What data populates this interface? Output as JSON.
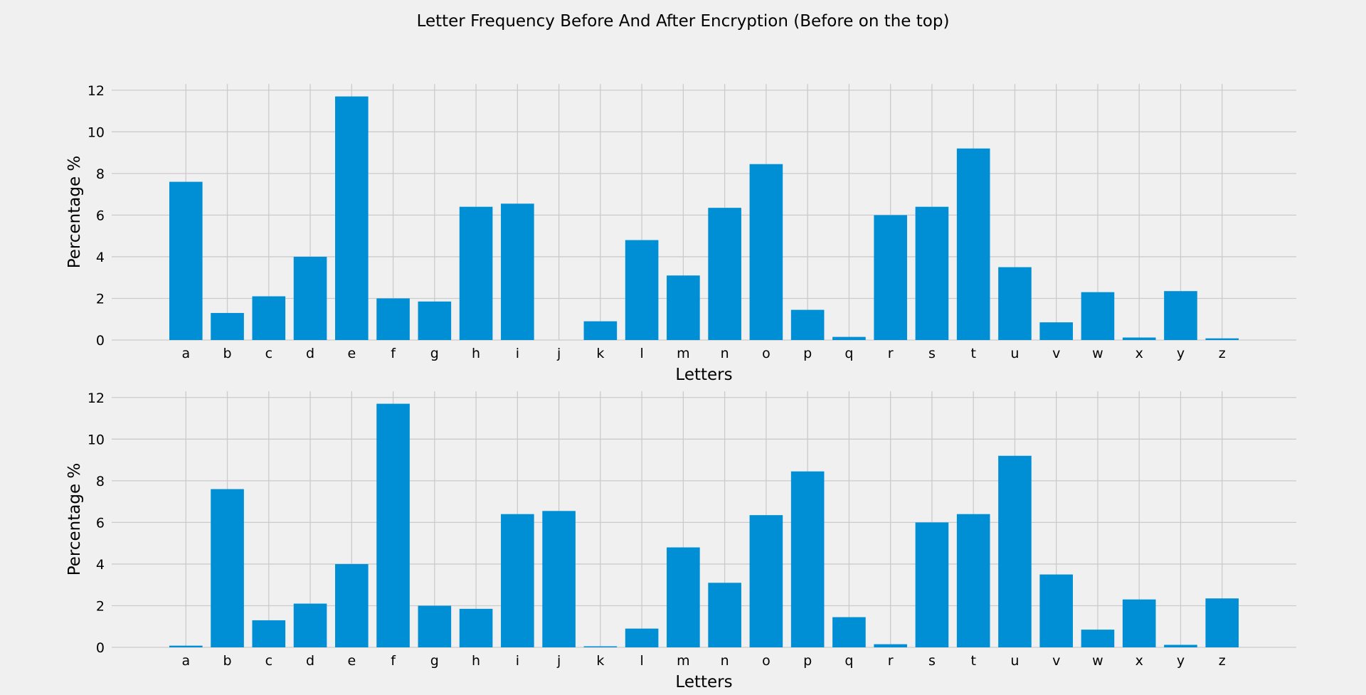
{
  "figure": {
    "suptitle": "Letter Frequency Before And After Encryption (Before on the top)",
    "background": "#f0f0f0",
    "bar_color": "#008fd5",
    "grid_color": "#cbcbcb"
  },
  "chart_data": [
    {
      "type": "bar",
      "panel": "top",
      "xlabel": "Letters",
      "ylabel": "Percentage %",
      "ylim": [
        0,
        12.3
      ],
      "yticks": [
        0,
        2,
        4,
        6,
        8,
        10,
        12
      ],
      "grid": true,
      "categories": [
        "a",
        "b",
        "c",
        "d",
        "e",
        "f",
        "g",
        "h",
        "i",
        "j",
        "k",
        "l",
        "m",
        "n",
        "o",
        "p",
        "q",
        "r",
        "s",
        "t",
        "u",
        "v",
        "w",
        "x",
        "y",
        "z"
      ],
      "values": [
        7.6,
        1.3,
        2.1,
        4.0,
        11.7,
        2.0,
        1.85,
        6.4,
        6.55,
        0.0,
        0.9,
        4.8,
        3.1,
        6.35,
        8.45,
        1.45,
        0.15,
        6.0,
        6.4,
        9.2,
        3.5,
        0.85,
        2.3,
        0.12,
        2.35,
        0.08
      ]
    },
    {
      "type": "bar",
      "panel": "bottom",
      "xlabel": "Letters",
      "ylabel": "Percentage %",
      "ylim": [
        0,
        12.3
      ],
      "yticks": [
        0,
        2,
        4,
        6,
        8,
        10,
        12
      ],
      "grid": true,
      "categories": [
        "a",
        "b",
        "c",
        "d",
        "e",
        "f",
        "g",
        "h",
        "i",
        "j",
        "k",
        "l",
        "m",
        "n",
        "o",
        "p",
        "q",
        "r",
        "s",
        "t",
        "u",
        "v",
        "w",
        "x",
        "y",
        "z"
      ],
      "values": [
        0.08,
        7.6,
        1.3,
        2.1,
        4.0,
        11.7,
        2.0,
        1.85,
        6.4,
        6.55,
        0.05,
        0.9,
        4.8,
        3.1,
        6.35,
        8.45,
        1.45,
        0.15,
        6.0,
        6.4,
        9.2,
        3.5,
        0.85,
        2.3,
        0.12,
        2.35
      ]
    }
  ]
}
